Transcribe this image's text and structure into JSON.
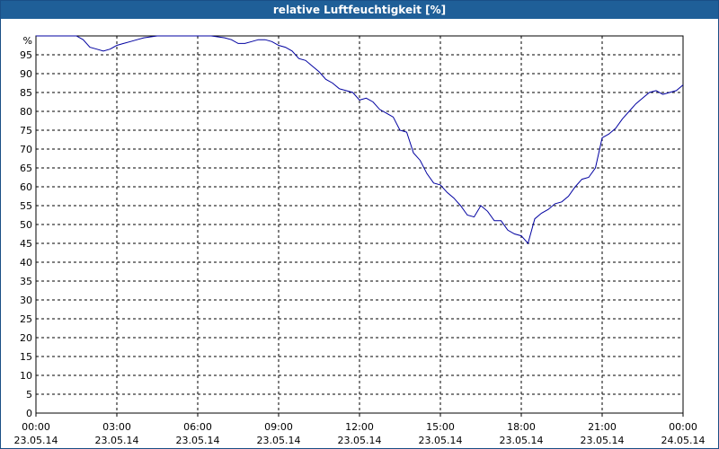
{
  "title": "relative Luftfeuchtigkeit [%]",
  "chart_data": {
    "type": "line",
    "title": "relative Luftfeuchtigkeit [%]",
    "y_unit_label": "%",
    "ylim": [
      0,
      100
    ],
    "y_ticks": [
      0,
      5,
      10,
      15,
      20,
      25,
      30,
      35,
      40,
      45,
      50,
      55,
      60,
      65,
      70,
      75,
      80,
      85,
      90,
      95
    ],
    "x_unit": "hours",
    "xlim": [
      0,
      24
    ],
    "x_ticks": [
      {
        "time": "00:00",
        "date": "23.05.14"
      },
      {
        "time": "03:00",
        "date": "23.05.14"
      },
      {
        "time": "06:00",
        "date": "23.05.14"
      },
      {
        "time": "09:00",
        "date": "23.05.14"
      },
      {
        "time": "12:00",
        "date": "23.05.14"
      },
      {
        "time": "15:00",
        "date": "23.05.14"
      },
      {
        "time": "18:00",
        "date": "23.05.14"
      },
      {
        "time": "21:00",
        "date": "23.05.14"
      },
      {
        "time": "00:00",
        "date": "24.05.14"
      }
    ],
    "grid": true,
    "series": [
      {
        "color": "#0000a0",
        "x": [
          0.0,
          0.5,
          1.0,
          1.5,
          1.75,
          2.0,
          2.25,
          2.5,
          2.75,
          3.0,
          3.25,
          3.5,
          3.75,
          4.0,
          4.5,
          5.0,
          5.5,
          6.0,
          6.5,
          7.0,
          7.25,
          7.5,
          7.75,
          8.0,
          8.25,
          8.5,
          8.75,
          9.0,
          9.25,
          9.5,
          9.75,
          10.0,
          10.25,
          10.5,
          10.75,
          11.0,
          11.25,
          11.5,
          11.75,
          12.0,
          12.25,
          12.5,
          12.75,
          13.0,
          13.25,
          13.5,
          13.75,
          14.0,
          14.25,
          14.5,
          14.75,
          15.0,
          15.25,
          15.5,
          15.75,
          16.0,
          16.25,
          16.5,
          16.75,
          17.0,
          17.25,
          17.5,
          17.75,
          18.0,
          18.25,
          18.5,
          18.75,
          19.0,
          19.25,
          19.5,
          19.75,
          20.0,
          20.25,
          20.5,
          20.75,
          21.0,
          21.25,
          21.5,
          21.75,
          22.0,
          22.25,
          22.5,
          22.75,
          23.0,
          23.25,
          23.5,
          23.75,
          24.0
        ],
        "values": [
          100,
          100,
          100,
          100,
          99,
          97,
          96.5,
          96,
          96.5,
          97.5,
          98,
          98.5,
          99,
          99.5,
          100,
          100,
          100,
          100,
          100,
          99.5,
          99,
          98,
          98,
          98.5,
          99,
          99,
          98.5,
          97.5,
          97,
          96,
          94,
          93.5,
          92,
          90.5,
          88.5,
          87.5,
          86,
          85.5,
          85,
          83,
          83.5,
          82.5,
          80.5,
          79.5,
          78.5,
          75,
          74.5,
          69,
          67,
          63.5,
          61,
          60.5,
          58.5,
          57,
          55,
          52.5,
          52,
          55,
          53.5,
          51,
          51,
          48.5,
          47.5,
          47,
          45,
          51.5,
          53,
          54,
          55.5,
          56,
          57.5,
          60,
          62,
          62.5,
          65,
          73,
          74,
          75.5,
          78,
          80,
          82,
          83.5,
          85,
          85.5,
          84.5,
          85,
          85.5,
          87
        ]
      }
    ]
  }
}
